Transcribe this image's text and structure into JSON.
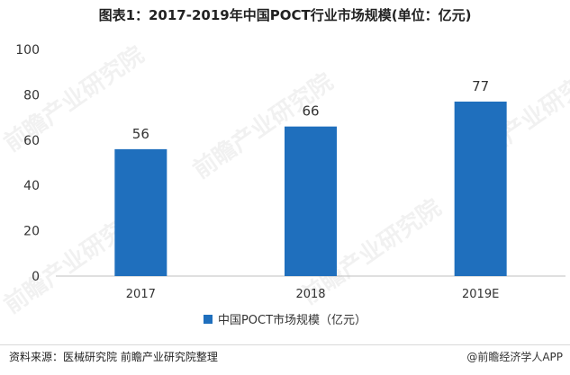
{
  "title": "图表1：2017-2019年中国POCT行业市场规模(单位：亿元)",
  "chart_data": {
    "type": "bar",
    "categories": [
      "2017",
      "2018",
      "2019E"
    ],
    "series": [
      {
        "name": "中国POCT市场规模（亿元）",
        "values": [
          56,
          66,
          77
        ]
      }
    ],
    "ylim": [
      0,
      100
    ],
    "yticks": [
      0,
      20,
      40,
      60,
      80,
      100
    ],
    "grid": false,
    "legend": "bottom-center",
    "colors": {
      "bar": "#1f6fbd"
    }
  },
  "legend_label": "中国POCT市场规模（亿元）",
  "footer": {
    "source": "资料来源：医械研究院 前瞻产业研究院整理",
    "brand": "@前瞻经济学人APP"
  },
  "watermark": "前瞻产业研究院"
}
